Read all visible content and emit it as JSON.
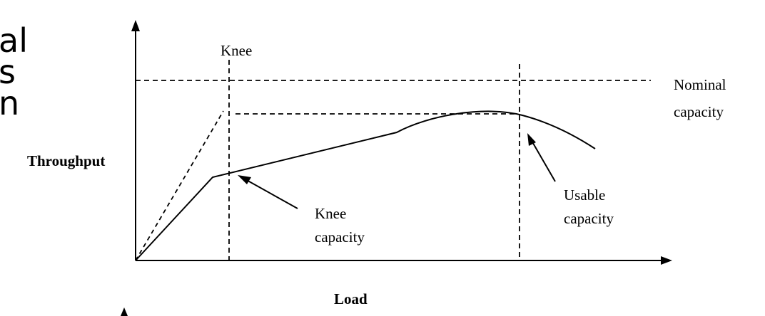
{
  "clipped_text": [
    "al",
    "s",
    "n"
  ],
  "labels": {
    "y_axis": "Throughput",
    "x_axis": "Load",
    "knee": "Knee",
    "nominal_line1": "Nominal",
    "nominal_line2": "capacity",
    "knee_cap_line1": "Knee",
    "knee_cap_line2": "capacity",
    "usable_line1": "Usable",
    "usable_line2": "capacity"
  },
  "colors": {
    "ink": "#000000",
    "background": "#ffffff"
  }
}
